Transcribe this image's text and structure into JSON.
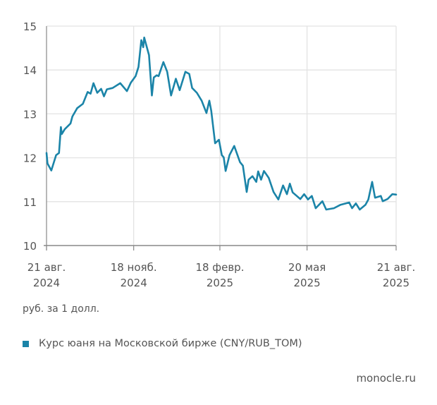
{
  "chart_data": {
    "type": "line",
    "title": "",
    "ylabel": "руб. за 1 долл.",
    "ylim": [
      10,
      15
    ],
    "xlim": [
      0,
      365
    ],
    "x_unit": "days since 21 Aug 2024",
    "yticks": [
      "10",
      "11",
      "12",
      "13",
      "14",
      "15"
    ],
    "ytick_values": [
      10,
      11,
      12,
      13,
      14,
      15
    ],
    "xticks": [
      {
        "x": 0,
        "line1": "21 авг.",
        "line2": "2024"
      },
      {
        "x": 91,
        "line1": "18 нояб.",
        "line2": "2024"
      },
      {
        "x": 181,
        "line1": "18 февр.",
        "line2": "2025"
      },
      {
        "x": 272,
        "line1": "20 мая",
        "line2": "2025"
      },
      {
        "x": 365,
        "line1": "21 авг.",
        "line2": "2025"
      }
    ],
    "grid": true,
    "legend_placement": "bottom-left",
    "series": [
      {
        "name": "Курс юаня на Московской бирже (CNY/RUB_TOM)",
        "color": "#1b84a8",
        "x": [
          0,
          1,
          5,
          10,
          13,
          15,
          16,
          19,
          25,
          27,
          32,
          38,
          43,
          46,
          49,
          53,
          57,
          60,
          63,
          69,
          77,
          84,
          88,
          93,
          96,
          99,
          101,
          102,
          104,
          107,
          110,
          112,
          115,
          117,
          122,
          126,
          130,
          135,
          139,
          145,
          149,
          152,
          157,
          162,
          167,
          170,
          172,
          176,
          180,
          183,
          185,
          187,
          191,
          196,
          202,
          205,
          209,
          211,
          215,
          219,
          221,
          224,
          227,
          232,
          237,
          242,
          247,
          251,
          254,
          257,
          265,
          269,
          273,
          277,
          281,
          288,
          292,
          300,
          307,
          316,
          319,
          323,
          327,
          333,
          336,
          340,
          343,
          349,
          351,
          356,
          361,
          365
        ],
        "y": [
          12.11,
          11.87,
          11.71,
          12.06,
          12.11,
          12.7,
          12.54,
          12.65,
          12.78,
          12.94,
          13.13,
          13.23,
          13.5,
          13.46,
          13.7,
          13.48,
          13.57,
          13.4,
          13.56,
          13.59,
          13.7,
          13.52,
          13.71,
          13.86,
          14.07,
          14.68,
          14.52,
          14.74,
          14.58,
          14.34,
          13.42,
          13.83,
          13.88,
          13.86,
          14.18,
          13.96,
          13.42,
          13.8,
          13.54,
          13.96,
          13.91,
          13.59,
          13.48,
          13.3,
          13.02,
          13.3,
          13.07,
          12.33,
          12.41,
          12.06,
          12.01,
          11.7,
          12.06,
          12.27,
          11.9,
          11.82,
          11.22,
          11.5,
          11.58,
          11.45,
          11.69,
          11.5,
          11.7,
          11.54,
          11.22,
          11.05,
          11.37,
          11.17,
          11.41,
          11.21,
          11.06,
          11.17,
          11.05,
          11.13,
          10.85,
          11.01,
          10.82,
          10.85,
          10.93,
          10.98,
          10.85,
          10.96,
          10.82,
          10.93,
          11.05,
          11.45,
          11.09,
          11.13,
          11.01,
          11.06,
          11.17,
          11.16
        ]
      }
    ]
  },
  "footer": {
    "unit_note": "руб. за 1 долл.",
    "legend_label": "Курс юаня на Московской бирже (CNY/RUB_TOM)",
    "source": "monocle.ru"
  }
}
